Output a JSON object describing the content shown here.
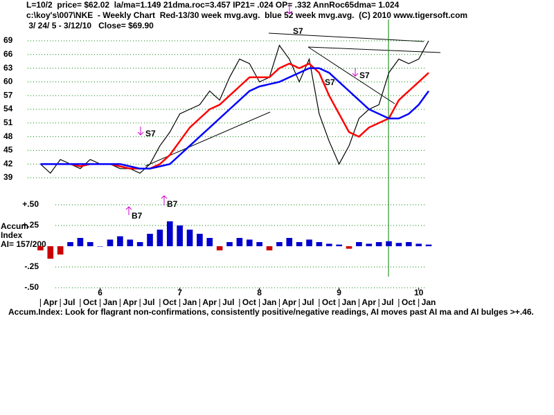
{
  "header": [
    "L=10/2  price= $62.02  la/ma=1.149 21dma.roc=3.457 IP21= .024 OP= .332 AnnRoc65dma= 1.024",
    "c:\\koy's\\007\\NKE  - Weekly Chart  Red-13/30 week mvg.avg.  blue 52 week mvg.avg.  (C) 2010 www.tigersoft.com",
    " 3/ 24/ 5 - 3/12/10   Close= $69.90"
  ],
  "footer": "Accum.Index: Look for flagrant non-confirmations, consistently positive/negative readings, AI moves past AI ma and AI bulges >+.46.",
  "signals": [
    "S7",
    "S7",
    "S7",
    "S7",
    "B7",
    "B7"
  ],
  "chart_data": [
    {
      "type": "line",
      "xlim": [
        2005.09,
        2010.09
      ],
      "ylim": [
        39,
        69
      ],
      "yticks": [
        39,
        42,
        45,
        48,
        51,
        54,
        57,
        60,
        63,
        66,
        69
      ],
      "grid": true,
      "xticks": [
        {
          "value": 2006,
          "label": "6"
        },
        {
          "value": 2007,
          "label": "7"
        },
        {
          "value": 2008,
          "label": "8"
        },
        {
          "value": 2009,
          "label": "9"
        },
        {
          "value": 2010,
          "label": "10"
        }
      ],
      "xticks_minor": [
        {
          "value": 2005.25,
          "label": "Apr"
        },
        {
          "value": 2005.5,
          "label": "Jul"
        },
        {
          "value": 2005.75,
          "label": "Oct"
        },
        {
          "value": 2006,
          "label": "Jan"
        },
        {
          "value": 2006.25,
          "label": "Apr"
        },
        {
          "value": 2006.5,
          "label": "Jul"
        },
        {
          "value": 2006.75,
          "label": "Oct"
        },
        {
          "value": 2007,
          "label": "Jan"
        },
        {
          "value": 2007.25,
          "label": "Apr"
        },
        {
          "value": 2007.5,
          "label": "Jul"
        },
        {
          "value": 2007.75,
          "label": "Oct"
        },
        {
          "value": 2008,
          "label": "Jan"
        },
        {
          "value": 2008.25,
          "label": "Apr"
        },
        {
          "value": 2008.5,
          "label": "Jul"
        },
        {
          "value": 2008.75,
          "label": "Oct"
        },
        {
          "value": 2009,
          "label": "Jan"
        },
        {
          "value": 2009.25,
          "label": "Apr"
        },
        {
          "value": 2009.5,
          "label": "Jul"
        },
        {
          "value": 2009.75,
          "label": "Oct"
        },
        {
          "value": 2010,
          "label": "Jan"
        }
      ],
      "x": [
        2005.25,
        2005.375,
        2005.5,
        2005.625,
        2005.75,
        2005.875,
        2006.0,
        2006.125,
        2006.25,
        2006.375,
        2006.5,
        2006.625,
        2006.75,
        2006.875,
        2007.0,
        2007.125,
        2007.25,
        2007.375,
        2007.5,
        2007.625,
        2007.75,
        2007.875,
        2008.0,
        2008.125,
        2008.25,
        2008.375,
        2008.5,
        2008.625,
        2008.75,
        2008.875,
        2009.0,
        2009.125,
        2009.25,
        2009.375,
        2009.5,
        2009.625,
        2009.75,
        2009.875,
        2010.0,
        2010.125
      ],
      "series": [
        {
          "color": "#000000",
          "values": [
            42,
            40,
            43,
            42,
            41,
            43,
            42,
            42,
            41,
            41,
            40,
            42,
            46,
            49,
            53,
            54,
            55,
            58,
            56,
            61,
            65,
            64,
            60,
            61,
            68,
            65,
            60,
            65,
            53,
            47,
            42,
            46,
            52,
            54,
            55,
            62,
            65,
            64,
            65,
            69
          ]
        },
        {
          "color": "#ff0000",
          "values": [
            42,
            42,
            42,
            42,
            41.5,
            42,
            42,
            42,
            41.5,
            41,
            41,
            41,
            42,
            44,
            47,
            50,
            52,
            54,
            55,
            57,
            59,
            61,
            61,
            61,
            63,
            64,
            63,
            64,
            62,
            57,
            53,
            49,
            48,
            50,
            51,
            52,
            56,
            58,
            60,
            62
          ]
        },
        {
          "color": "#0000ff",
          "values": [
            42,
            42,
            42,
            42,
            42,
            42,
            42,
            42,
            42,
            41.5,
            41,
            41,
            41.5,
            42,
            44,
            46,
            48,
            50,
            52,
            54,
            56,
            58,
            59,
            59.5,
            60,
            61,
            62,
            63,
            63,
            62,
            60,
            58,
            56,
            54,
            53,
            52,
            52,
            53,
            55,
            58
          ]
        }
      ]
    },
    {
      "type": "bar",
      "title": "Accum",
      "subtitle": "Index",
      "annotation": "AI= 157/200",
      "ylim": [
        -0.5,
        0.5
      ],
      "yticks": [
        {
          "value": 0.5,
          "label": "+.50"
        },
        {
          "value": 0.25,
          "label": "+.25"
        },
        {
          "value": -0.25,
          "label": "-.25"
        },
        {
          "value": -0.5,
          "label": "-.50"
        }
      ],
      "colors": [
        "#0000cc",
        "#cc0000"
      ],
      "values": [
        -0.05,
        -0.15,
        -0.1,
        0.05,
        0.1,
        0.05,
        0.0,
        0.08,
        0.12,
        0.08,
        0.05,
        0.15,
        0.2,
        0.3,
        0.25,
        0.2,
        0.15,
        0.1,
        -0.05,
        0.05,
        0.1,
        0.08,
        0.05,
        -0.05,
        0.05,
        0.1,
        0.05,
        0.08,
        0.05,
        0.03,
        0.02,
        -0.03,
        0.05,
        0.03,
        0.05,
        0.06,
        0.04,
        0.05,
        0.03,
        0.02
      ]
    }
  ]
}
